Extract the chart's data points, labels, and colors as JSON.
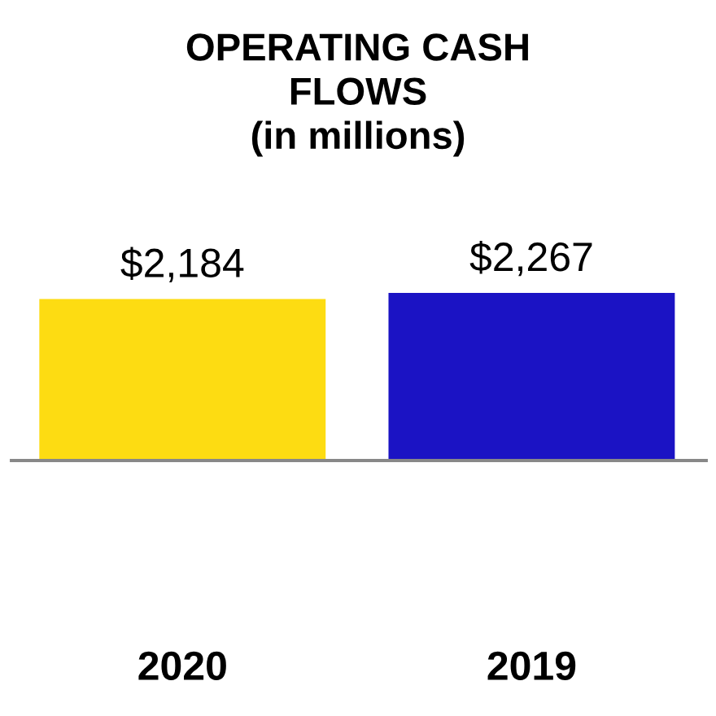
{
  "chart_data": {
    "type": "bar",
    "title": "OPERATING CASH\nFLOWS\n(in millions)",
    "categories": [
      "2020",
      "2019"
    ],
    "values": [
      2184,
      2267
    ],
    "colors": [
      "#fddc12",
      "#1b13c4"
    ],
    "value_labels": [
      "$2,184",
      "$2,267"
    ]
  }
}
